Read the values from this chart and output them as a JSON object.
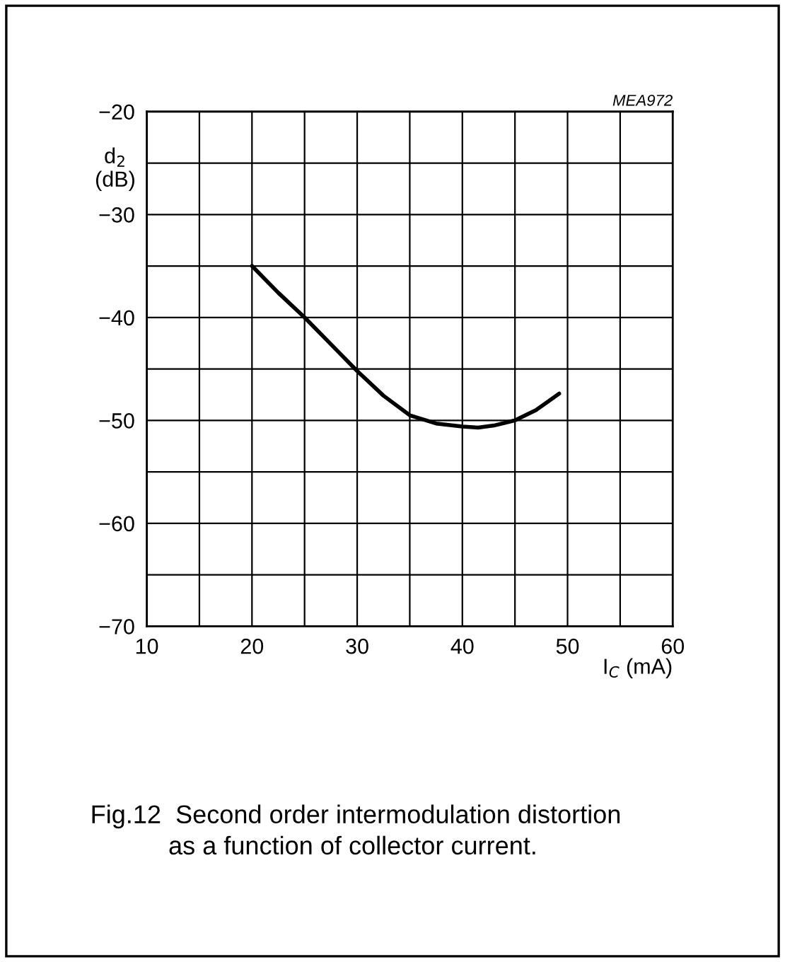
{
  "chart_data": {
    "type": "line",
    "title": "MEA972",
    "xlabel": "I$_{C}$ (mA)",
    "ylabel": "d$_{2}$\n(dB)",
    "x": [
      20,
      22.5,
      25,
      27.5,
      30,
      32.5,
      35,
      37.5,
      40,
      41.5,
      43,
      45,
      47,
      49.2
    ],
    "series": [
      {
        "color": "#000000",
        "values": [
          -35,
          -37.6,
          -40,
          -42.6,
          -45.2,
          -47.6,
          -49.5,
          -50.3,
          -50.6,
          -50.7,
          -50.5,
          -50,
          -49,
          -47.4
        ]
      }
    ],
    "xlim": [
      10,
      60
    ],
    "ylim": [
      -70,
      -20
    ],
    "xticks": [
      10,
      {
        "value": 15,
        "label": null
      },
      20,
      {
        "value": 25,
        "label": null
      },
      30,
      {
        "value": 35,
        "label": null
      },
      40,
      {
        "value": 45,
        "label": null
      },
      50,
      {
        "value": 55,
        "label": null
      },
      60
    ],
    "yticks": [
      {
        "value": -70,
        "label": "−70"
      },
      {
        "value": -65,
        "label": null
      },
      {
        "value": -60,
        "label": "−60"
      },
      {
        "value": -55,
        "label": null
      },
      {
        "value": -50,
        "label": "−50"
      },
      {
        "value": -45,
        "label": null
      },
      {
        "value": -40,
        "label": "−40"
      },
      {
        "value": -35,
        "label": null
      },
      {
        "value": -30,
        "label": "−30"
      },
      {
        "value": -25,
        "label": null
      },
      {
        "value": -20,
        "label": "−20"
      }
    ],
    "grid": true,
    "line_style": "solid",
    "marker": "none",
    "legend": false,
    "annotations": [
      "Fig.12  Second order intermodulation distortion\n           as a function of collector current."
    ]
  }
}
